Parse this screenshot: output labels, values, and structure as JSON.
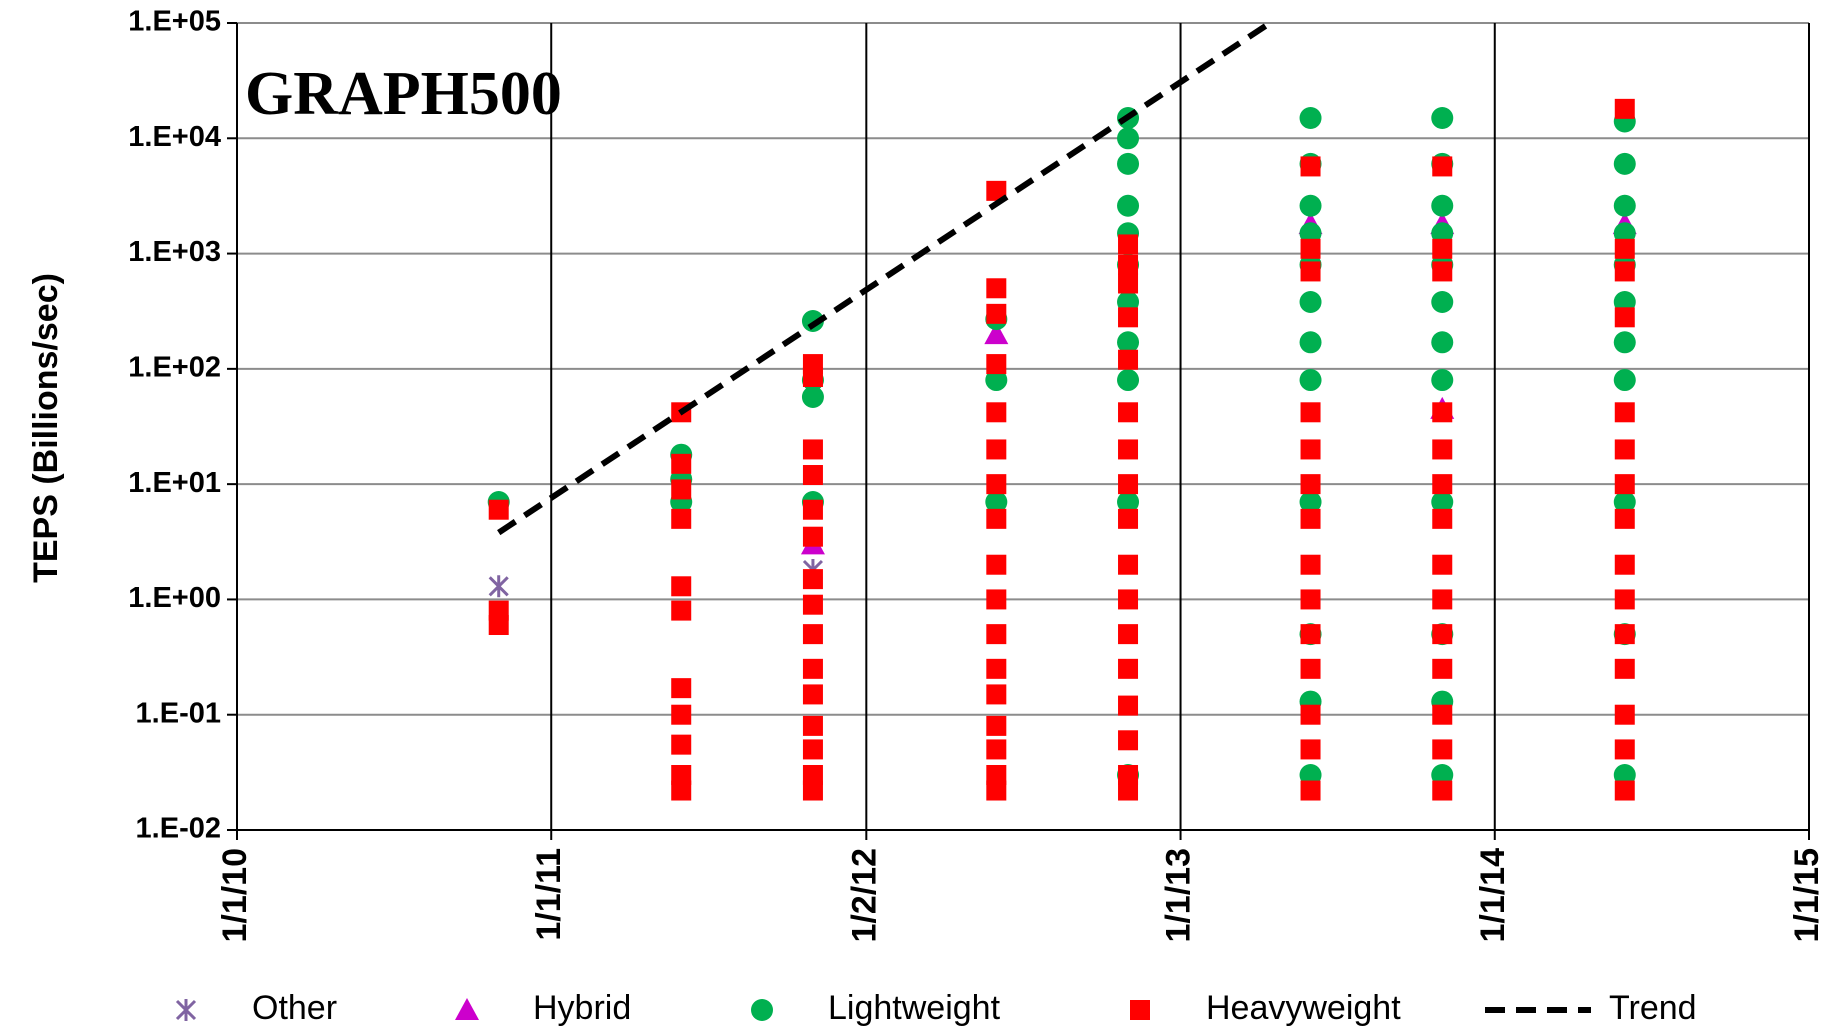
{
  "chart_data": {
    "type": "scatter",
    "title": "GRAPH500",
    "y_label": "TEPS (Billions/sec)",
    "yscale": "log",
    "grid": true,
    "legend": "bottom",
    "ylim": [
      0.01,
      100000
    ],
    "yticks": [
      {
        "value": 0.01,
        "label": "1.E-02"
      },
      {
        "value": 0.1,
        "label": "1.E-01"
      },
      {
        "value": 1,
        "label": "1.E+00"
      },
      {
        "value": 10,
        "label": "1.E+01"
      },
      {
        "value": 100,
        "label": "1.E+02"
      },
      {
        "value": 1000,
        "label": "1.E+03"
      },
      {
        "value": 10000,
        "label": "1.E+04"
      },
      {
        "value": 100000,
        "label": "1.E+05"
      }
    ],
    "xlim": [
      "1/1/10",
      "1/1/15"
    ],
    "xticks": [
      "1/1/10",
      "1/1/11",
      "1/2/12",
      "1/1/13",
      "1/1/14",
      "1/1/15"
    ],
    "series": [
      {
        "name": "Other",
        "color": "#8064a2",
        "marker": "x",
        "x": [
          "11/1/10",
          "11/1/11"
        ],
        "values": [
          1.3,
          1.8
        ]
      },
      {
        "name": "Hybrid",
        "color": "#cc00cc",
        "marker": "triangle",
        "x": [
          "11/1/11",
          "6/1/12",
          "6/1/13",
          "11/1/13",
          "11/1/13",
          "6/1/14"
        ],
        "values": [
          3,
          200,
          1800,
          1800,
          45,
          1800
        ]
      },
      {
        "name": "Lightweight",
        "color": "#00b050",
        "marker": "circle",
        "x": [
          "11/1/10",
          "6/1/11",
          "6/1/11",
          "6/1/11",
          "11/1/11",
          "11/1/11",
          "11/1/11",
          "11/1/11",
          "6/1/12",
          "6/1/12",
          "6/1/12",
          "11/1/12",
          "11/1/12",
          "11/1/12",
          "11/1/12",
          "11/1/12",
          "11/1/12",
          "11/1/12",
          "11/1/12",
          "11/1/12",
          "11/1/12",
          "11/1/12",
          "6/1/13",
          "6/1/13",
          "6/1/13",
          "6/1/13",
          "6/1/13",
          "6/1/13",
          "6/1/13",
          "6/1/13",
          "6/1/13",
          "6/1/13",
          "6/1/13",
          "6/1/13",
          "11/1/13",
          "11/1/13",
          "11/1/13",
          "11/1/13",
          "11/1/13",
          "11/1/13",
          "11/1/13",
          "11/1/13",
          "11/1/13",
          "11/1/13",
          "11/1/13",
          "11/1/13",
          "6/1/14",
          "6/1/14",
          "6/1/14",
          "6/1/14",
          "6/1/14",
          "6/1/14",
          "6/1/14",
          "6/1/14",
          "6/1/14",
          "6/1/14",
          "6/1/14"
        ],
        "values": [
          7,
          18,
          11,
          7,
          260,
          80,
          57,
          7,
          270,
          80,
          7,
          15000,
          10000,
          6000,
          2600,
          1500,
          800,
          380,
          170,
          80,
          7,
          0.03,
          15000,
          6000,
          2600,
          1500,
          800,
          380,
          170,
          80,
          7,
          0.5,
          0.13,
          0.03,
          15000,
          6000,
          2600,
          1500,
          800,
          380,
          170,
          80,
          7,
          0.5,
          0.13,
          0.03,
          14000,
          6000,
          2600,
          1500,
          800,
          380,
          170,
          80,
          7,
          0.5,
          0.03
        ]
      },
      {
        "name": "Heavyweight",
        "color": "#ff0000",
        "marker": "square",
        "x": [
          "11/1/10",
          "11/1/10",
          "11/1/10",
          "6/1/11",
          "6/1/11",
          "6/1/11",
          "6/1/11",
          "6/1/11",
          "6/1/11",
          "6/1/11",
          "6/1/11",
          "6/1/11",
          "6/1/11",
          "6/1/11",
          "11/1/11",
          "11/1/11",
          "11/1/11",
          "11/1/11",
          "11/1/11",
          "11/1/11",
          "11/1/11",
          "11/1/11",
          "11/1/11",
          "11/1/11",
          "11/1/11",
          "11/1/11",
          "11/1/11",
          "11/1/11",
          "11/1/11",
          "6/1/12",
          "6/1/12",
          "6/1/12",
          "6/1/12",
          "6/1/12",
          "6/1/12",
          "6/1/12",
          "6/1/12",
          "6/1/12",
          "6/1/12",
          "6/1/12",
          "6/1/12",
          "6/1/12",
          "6/1/12",
          "6/1/12",
          "6/1/12",
          "6/1/12",
          "11/1/12",
          "11/1/12",
          "11/1/12",
          "11/1/12",
          "11/1/12",
          "11/1/12",
          "11/1/12",
          "11/1/12",
          "11/1/12",
          "11/1/12",
          "11/1/12",
          "11/1/12",
          "11/1/12",
          "11/1/12",
          "11/1/12",
          "11/1/12",
          "11/1/12",
          "6/1/13",
          "6/1/13",
          "6/1/13",
          "6/1/13",
          "6/1/13",
          "6/1/13",
          "6/1/13",
          "6/1/13",
          "6/1/13",
          "6/1/13",
          "6/1/13",
          "6/1/13",
          "6/1/13",
          "6/1/13",
          "11/1/13",
          "11/1/13",
          "11/1/13",
          "11/1/13",
          "11/1/13",
          "11/1/13",
          "11/1/13",
          "11/1/13",
          "11/1/13",
          "11/1/13",
          "11/1/13",
          "11/1/13",
          "11/1/13",
          "11/1/13",
          "6/1/14",
          "6/1/14",
          "6/1/14",
          "6/1/14",
          "6/1/14",
          "6/1/14",
          "6/1/14",
          "6/1/14",
          "6/1/14",
          "6/1/14",
          "6/1/14",
          "6/1/14",
          "6/1/14",
          "6/1/14",
          "6/1/14"
        ],
        "values": [
          6,
          0.8,
          0.6,
          42,
          15,
          9,
          5,
          1.3,
          0.8,
          0.17,
          0.1,
          0.055,
          0.03,
          0.022,
          110,
          85,
          20,
          12,
          6,
          3.5,
          1.5,
          0.9,
          0.5,
          0.25,
          0.15,
          0.08,
          0.05,
          0.03,
          0.022,
          3500,
          500,
          300,
          110,
          42,
          20,
          10,
          5,
          2,
          1,
          0.5,
          0.25,
          0.15,
          0.08,
          0.05,
          0.03,
          0.022,
          1200,
          800,
          550,
          280,
          120,
          42,
          20,
          10,
          5,
          2,
          1,
          0.5,
          0.25,
          0.12,
          0.06,
          0.03,
          0.022,
          5700,
          1100,
          700,
          42,
          20,
          10,
          5,
          2,
          1,
          0.5,
          0.25,
          0.1,
          0.05,
          0.022,
          5700,
          1100,
          700,
          42,
          20,
          10,
          5,
          2,
          1,
          0.5,
          0.25,
          0.1,
          0.05,
          0.022,
          18000,
          1100,
          700,
          280,
          42,
          20,
          10,
          5,
          2,
          1,
          0.5,
          0.25,
          0.1,
          0.05,
          0.022
        ]
      },
      {
        "name": "Trend",
        "color": "#000000",
        "type": "line",
        "line_style": "dashed",
        "x": [
          "11/1/10",
          "4/15/13"
        ],
        "values": [
          3.8,
          100000
        ]
      }
    ]
  }
}
